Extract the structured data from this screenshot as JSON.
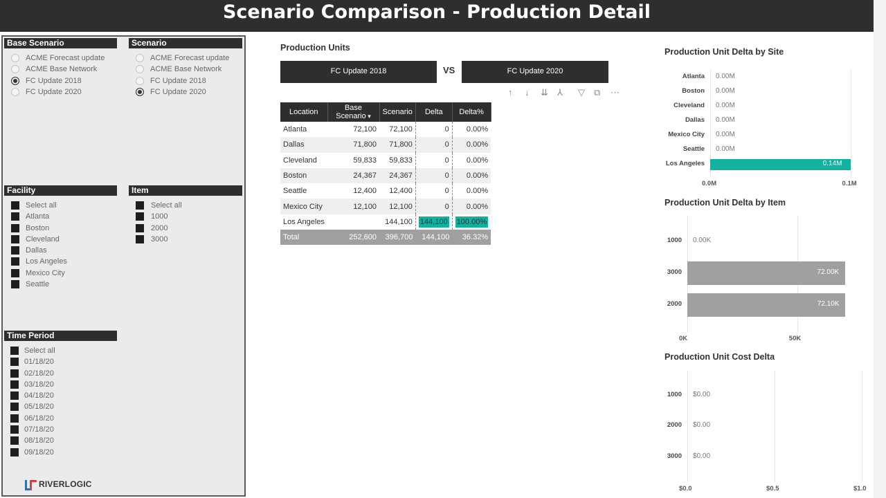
{
  "title": "Scenario Comparison - Production Detail",
  "base_scenario": {
    "heading": "Base Scenario",
    "options": [
      "ACME Forecast update",
      "ACME Base Network",
      "FC Update 2018",
      "FC Update 2020"
    ],
    "selected": "FC Update 2018"
  },
  "scenario": {
    "heading": "Scenario",
    "options": [
      "ACME Forecast update",
      "ACME Base Network",
      "FC Update 2018",
      "FC Update 2020"
    ],
    "selected": "FC Update 2020"
  },
  "facility": {
    "heading": "Facility",
    "options": [
      "Select all",
      "Atlanta",
      "Boston",
      "Cleveland",
      "Dallas",
      "Los Angeles",
      "Mexico City",
      "Seattle"
    ]
  },
  "item": {
    "heading": "Item",
    "options": [
      "Select all",
      "1000",
      "2000",
      "3000"
    ]
  },
  "time_period": {
    "heading": "Time Period",
    "options": [
      "Select all",
      "01/18/20",
      "02/18/20",
      "03/18/20",
      "04/18/20",
      "05/18/20",
      "06/18/20",
      "07/18/20",
      "08/18/20",
      "09/18/20"
    ]
  },
  "logo_text": "RIVERLOGIC",
  "production_units": {
    "title": "Production Units",
    "base_label": "FC Update 2018",
    "vs": "VS",
    "scenario_label": "FC Update 2020",
    "columns": [
      "Location",
      "Base Scenario",
      "Scenario",
      "Delta",
      "Delta%"
    ],
    "rows": [
      [
        "Atlanta",
        "72,100",
        "72,100",
        "0",
        "0.00%"
      ],
      [
        "Dallas",
        "71,800",
        "71,800",
        "0",
        "0.00%"
      ],
      [
        "Cleveland",
        "59,833",
        "59,833",
        "0",
        "0.00%"
      ],
      [
        "Boston",
        "24,367",
        "24,367",
        "0",
        "0.00%"
      ],
      [
        "Seattle",
        "12,400",
        "12,400",
        "0",
        "0.00%"
      ],
      [
        "Mexico City",
        "12,100",
        "12,100",
        "0",
        "0.00%"
      ],
      [
        "Los Angeles",
        "",
        "144,100",
        "144,100",
        "100.00%"
      ]
    ],
    "total": [
      "Total",
      "252,600",
      "396,700",
      "144,100",
      "36.32%"
    ]
  },
  "toolbar_icons": [
    "arrow-up-icon",
    "arrow-down-icon",
    "double-arrow-down-icon",
    "expand-hierarchy-icon",
    "filter-icon",
    "focus-mode-icon",
    "more-options-icon"
  ],
  "colors": {
    "header": "#2e2e2e",
    "teal": "#13b0a0",
    "gray_bar": "#a0a0a0"
  },
  "chart_data": [
    {
      "type": "bar",
      "title": "Production Unit Delta by Site",
      "categories": [
        "Atlanta",
        "Boston",
        "Cleveland",
        "Dallas",
        "Mexico City",
        "Seattle",
        "Los Angeles"
      ],
      "values": [
        0,
        0,
        0,
        0,
        0,
        0,
        0.1441
      ],
      "value_labels": [
        "0.00M",
        "0.00M",
        "0.00M",
        "0.00M",
        "0.00M",
        "0.00M",
        "0.14M"
      ],
      "xticks": [
        "0.0M",
        "0.1M"
      ],
      "xlim": [
        0,
        0.15
      ],
      "orientation": "horizontal"
    },
    {
      "type": "bar",
      "title": "Production Unit Delta by Item",
      "categories": [
        "1000",
        "3000",
        "2000"
      ],
      "values": [
        0,
        72000,
        72100
      ],
      "value_labels": [
        "0.00K",
        "72.00K",
        "72.10K"
      ],
      "xticks": [
        "0K",
        "50K"
      ],
      "xlim": [
        0,
        75000
      ],
      "orientation": "horizontal"
    },
    {
      "type": "bar",
      "title": "Production Unit Cost Delta",
      "categories": [
        "1000",
        "2000",
        "3000"
      ],
      "values": [
        0,
        0,
        0
      ],
      "value_labels": [
        "$0.00",
        "$0.00",
        "$0.00"
      ],
      "xticks": [
        "$0.0",
        "$0.5",
        "$1.0"
      ],
      "xlim": [
        0,
        1
      ],
      "orientation": "horizontal"
    }
  ]
}
